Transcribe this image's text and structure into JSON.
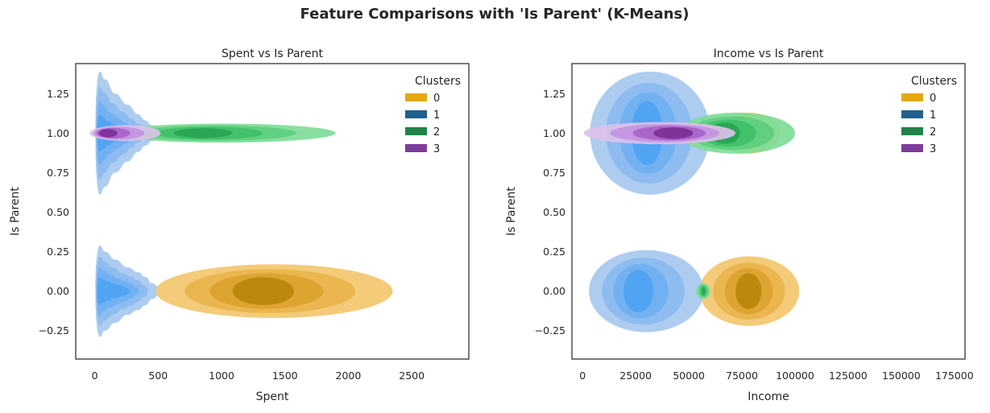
{
  "figure": {
    "suptitle": "Feature Comparisons with 'Is Parent' (K-Means)"
  },
  "chart_data": [
    {
      "type": "kde",
      "title": "Spent vs Is Parent",
      "xlabel": "Spent",
      "ylabel": "Is Parent",
      "xlim": [
        -150,
        2950
      ],
      "ylim": [
        -0.43,
        1.44
      ],
      "xticks": [
        0,
        500,
        1000,
        1500,
        2000,
        2500
      ],
      "xtick_labels": [
        "0",
        "500",
        "1000",
        "1500",
        "2000",
        "2500"
      ],
      "yticks": [
        -0.25,
        0.0,
        0.25,
        0.5,
        0.75,
        1.0,
        1.25
      ],
      "ytick_labels": [
        "−0.25",
        "0.00",
        "0.25",
        "0.50",
        "0.75",
        "1.00",
        "1.25"
      ],
      "legend": {
        "title": "Clusters",
        "placement": "top-right",
        "entries": [
          {
            "label": "0",
            "color": "#e3a90e"
          },
          {
            "label": "1",
            "color": "#21618c"
          },
          {
            "label": "2",
            "color": "#1e8449"
          },
          {
            "label": "3",
            "color": "#7d3c98"
          }
        ]
      },
      "series": [
        {
          "cluster": "1",
          "y": 0,
          "x_values": [
            40,
            80,
            160,
            260,
            340,
            400,
            450
          ],
          "half_heights": [
            0.29,
            0.25,
            0.2,
            0.15,
            0.12,
            0.09,
            0.05
          ]
        },
        {
          "cluster": "1",
          "y": 1,
          "x_values": [
            40,
            80,
            160,
            260,
            340,
            400,
            450
          ],
          "half_heights": [
            0.39,
            0.34,
            0.25,
            0.18,
            0.12,
            0.08,
            0.05
          ]
        },
        {
          "cluster": "0",
          "y": 0,
          "x_min": 480,
          "x_max": 2350,
          "x_mode": 1300,
          "half_height": 0.17
        },
        {
          "cluster": "2",
          "y": 1,
          "x_min": 120,
          "x_max": 1900,
          "x_mode": 800,
          "half_height": 0.06
        },
        {
          "cluster": "3",
          "y": 1,
          "x_min": -40,
          "x_max": 520,
          "x_mode": 60,
          "half_height": 0.05
        }
      ]
    },
    {
      "type": "kde",
      "title": "Income vs Is Parent",
      "xlabel": "Income",
      "ylabel": "Is Parent",
      "xlim": [
        -5000,
        180000
      ],
      "ylim": [
        -0.43,
        1.44
      ],
      "xticks": [
        0,
        25000,
        50000,
        75000,
        100000,
        125000,
        150000,
        175000
      ],
      "xtick_labels": [
        "0",
        "25000",
        "50000",
        "75000",
        "100000",
        "125000",
        "150000",
        "175000"
      ],
      "yticks": [
        -0.25,
        0.0,
        0.25,
        0.5,
        0.75,
        1.0,
        1.25
      ],
      "ytick_labels": [
        "−0.25",
        "0.00",
        "0.25",
        "0.50",
        "0.75",
        "1.00",
        "1.25"
      ],
      "legend": {
        "title": "Clusters",
        "placement": "top-right",
        "entries": [
          {
            "label": "0",
            "color": "#e3a90e"
          },
          {
            "label": "1",
            "color": "#21618c"
          },
          {
            "label": "2",
            "color": "#1e8449"
          },
          {
            "label": "3",
            "color": "#7d3c98"
          }
        ]
      },
      "series": [
        {
          "cluster": "0",
          "y": 0,
          "x_min": 55000,
          "x_max": 102000,
          "x_mode": 78000,
          "half_height": 0.22
        },
        {
          "cluster": "1",
          "y": 0,
          "x_min": 3000,
          "x_max": 57000,
          "x_mode": 25000,
          "half_height": 0.26
        },
        {
          "cluster": "2",
          "y": 0,
          "x_min": 53500,
          "x_max": 60000,
          "x_mode": 57000,
          "half_height": 0.05
        },
        {
          "cluster": "1",
          "y": 1,
          "x_min": 3500,
          "x_max": 60000,
          "x_mode": 30000,
          "half_height": 0.39
        },
        {
          "cluster": "0",
          "y": 1,
          "x_min": 63000,
          "x_max": 93000,
          "x_mode": 78000,
          "half_height": 0.13
        },
        {
          "cluster": "2",
          "y": 1,
          "x_min": 45000,
          "x_max": 100000,
          "x_mode": 65000,
          "half_height": 0.13
        },
        {
          "cluster": "3",
          "y": 1,
          "x_min": 500,
          "x_max": 72000,
          "x_mode": 45000,
          "half_height": 0.07
        }
      ]
    }
  ]
}
